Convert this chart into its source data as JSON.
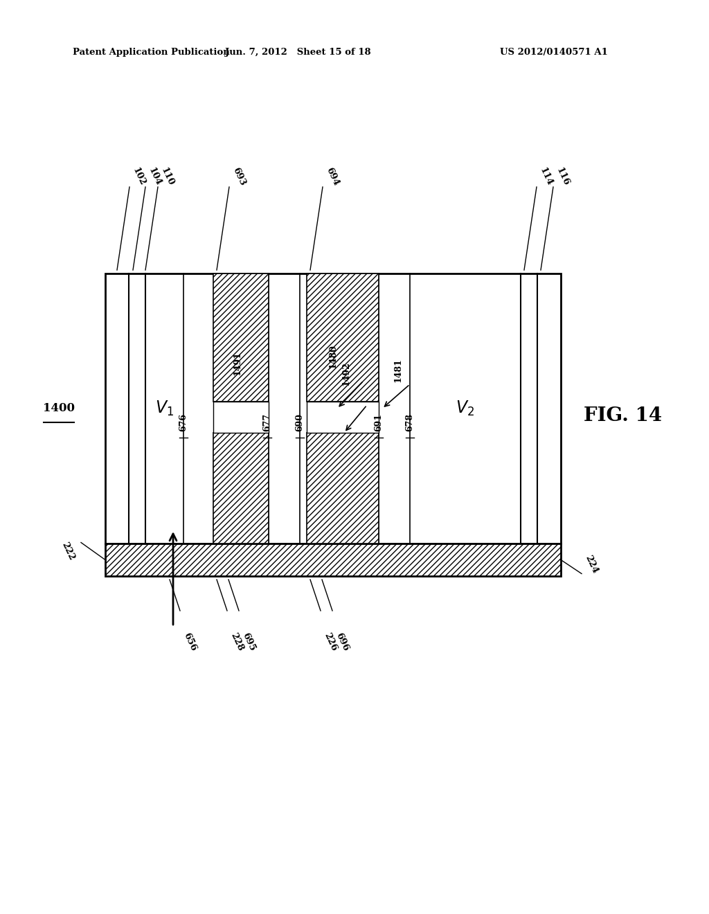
{
  "bg_color": "#ffffff",
  "header_left": "Patent Application Publication",
  "header_center": "Jun. 7, 2012   Sheet 15 of 18",
  "header_right": "US 2012/0140571 A1",
  "fig_label": "FIG. 14",
  "diagram_label": "1400"
}
